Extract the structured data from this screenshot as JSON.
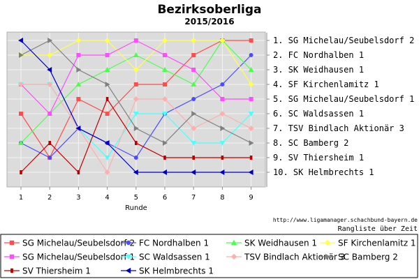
{
  "chart_data": {
    "type": "line",
    "title": "Bezirksoberliga",
    "subtitle": "2015/2016",
    "xlabel": "Runde",
    "x": [
      1,
      2,
      3,
      4,
      5,
      6,
      7,
      8,
      9
    ],
    "ylim": [
      1,
      10
    ],
    "y_inverted": true,
    "grid": true,
    "legend_position": "bottom",
    "ranking": [
      "1. SG Michelau/Seubelsdorf 2",
      "2. FC Nordhalben 1",
      "3. SK Weidhausen 1",
      "4. SF Kirchenlamitz 1",
      "5. SG Michelau/Seubelsdorf 1",
      "6. SC Waldsassen 1",
      "7. TSV Bindlach Aktionär 3",
      "8. SC Bamberg 2",
      "9. SV Thiersheim 1",
      "10. SK Helmbrechts 1"
    ],
    "series": [
      {
        "name": "SG Michelau/Seubelsdorf 2",
        "color": "#ff4c4c",
        "marker": "square",
        "values": [
          6,
          9,
          5,
          6,
          4,
          4,
          2,
          1,
          1
        ]
      },
      {
        "name": "FC Nordhalben 1",
        "color": "#4c4cff",
        "marker": "circle",
        "values": [
          8,
          9,
          7,
          8,
          9,
          6,
          5,
          4,
          2
        ]
      },
      {
        "name": "SK Weidhausen 1",
        "color": "#4cff4c",
        "marker": "triangle",
        "values": [
          8,
          6,
          4,
          3,
          2,
          3,
          4,
          1,
          3
        ]
      },
      {
        "name": "SF Kirchenlamitz 1",
        "color": "#ffff4c",
        "marker": "diamond",
        "values": [
          2,
          2,
          1,
          1,
          3,
          1,
          1,
          1,
          4
        ]
      },
      {
        "name": "SG Michelau/Seubelsdorf 1",
        "color": "#ff4cff",
        "marker": "square",
        "values": [
          4,
          6,
          2,
          2,
          1,
          2,
          3,
          5,
          5
        ]
      },
      {
        "name": "SC Waldsassen 1",
        "color": "#4cffff",
        "marker": "tri-down",
        "values": [
          4,
          4,
          7,
          9,
          6,
          6,
          8,
          8,
          6
        ]
      },
      {
        "name": "TSV Bindlach Aktionär 3",
        "color": "#ffafaf",
        "marker": "diamond",
        "values": [
          4,
          4,
          7,
          10,
          5,
          5,
          7,
          6,
          7
        ]
      },
      {
        "name": "SC Bamberg 2",
        "color": "#808080",
        "marker": "tri-right",
        "values": [
          2,
          1,
          3,
          4,
          7,
          8,
          6,
          7,
          8
        ]
      },
      {
        "name": "SV Thiersheim 1",
        "color": "#c00000",
        "marker": "rect",
        "values": [
          10,
          8,
          10,
          5,
          8,
          9,
          9,
          9,
          9
        ]
      },
      {
        "name": "SK Helmbrechts 1",
        "color": "#0000c0",
        "marker": "tri-left",
        "values": [
          1,
          3,
          7,
          8,
          10,
          10,
          10,
          10,
          10
        ]
      }
    ],
    "footer": {
      "url": "http://www.ligamanager.schachbund-bayern.de",
      "caption": "Rangliste über Zeit"
    }
  }
}
